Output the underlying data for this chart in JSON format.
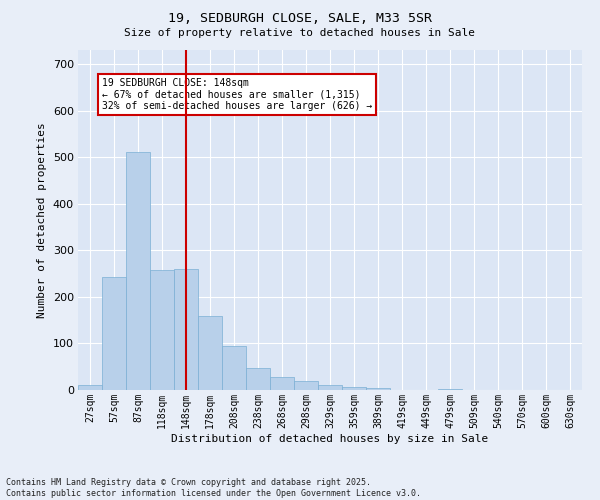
{
  "title1": "19, SEDBURGH CLOSE, SALE, M33 5SR",
  "title2": "Size of property relative to detached houses in Sale",
  "xlabel": "Distribution of detached houses by size in Sale",
  "ylabel": "Number of detached properties",
  "bar_color": "#b8d0ea",
  "bar_edge_color": "#7aafd4",
  "background_color": "#dce6f5",
  "fig_background_color": "#e8eef8",
  "grid_color": "#ffffff",
  "annotation_box_color": "#cc0000",
  "vline_color": "#cc0000",
  "categories": [
    "27sqm",
    "57sqm",
    "87sqm",
    "118sqm",
    "148sqm",
    "178sqm",
    "208sqm",
    "238sqm",
    "268sqm",
    "298sqm",
    "329sqm",
    "359sqm",
    "389sqm",
    "419sqm",
    "449sqm",
    "479sqm",
    "509sqm",
    "540sqm",
    "570sqm",
    "600sqm",
    "630sqm"
  ],
  "values": [
    10,
    243,
    510,
    258,
    260,
    158,
    95,
    47,
    28,
    20,
    10,
    7,
    4,
    0,
    0,
    2,
    0,
    0,
    0,
    0,
    0
  ],
  "annotation_line1": "19 SEDBURGH CLOSE: 148sqm",
  "annotation_line2": "← 67% of detached houses are smaller (1,315)",
  "annotation_line3": "32% of semi-detached houses are larger (626) →",
  "vline_x_index": 4,
  "ylim": [
    0,
    730
  ],
  "yticks": [
    0,
    100,
    200,
    300,
    400,
    500,
    600,
    700
  ],
  "footer1": "Contains HM Land Registry data © Crown copyright and database right 2025.",
  "footer2": "Contains public sector information licensed under the Open Government Licence v3.0."
}
